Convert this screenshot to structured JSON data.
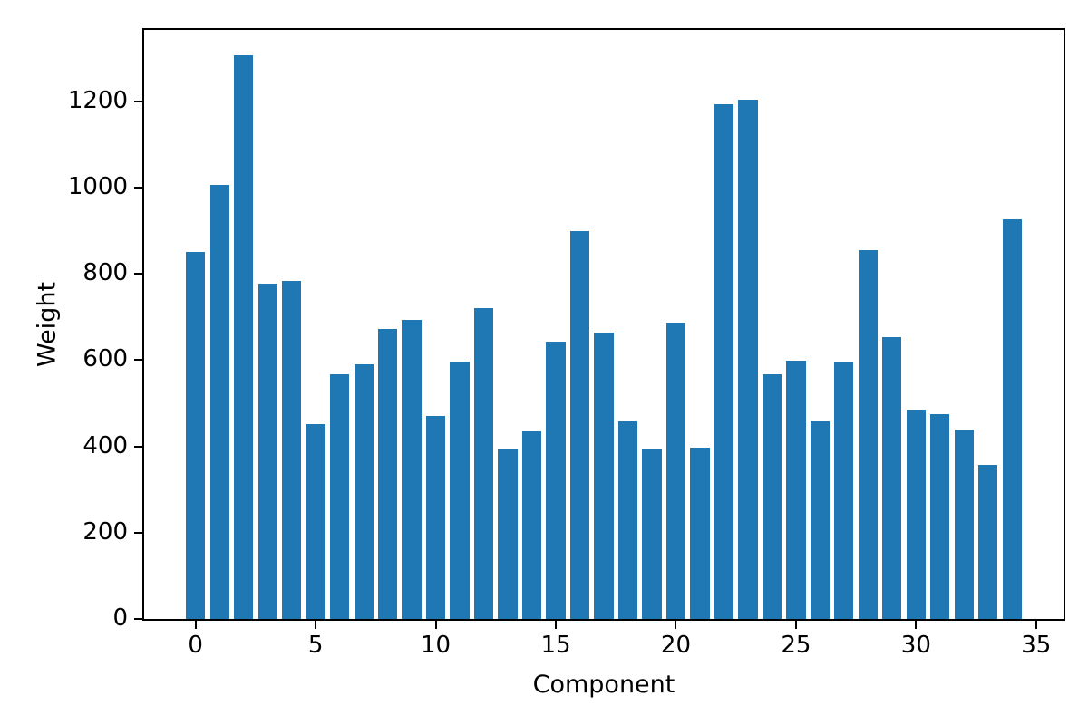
{
  "figure": {
    "background": "#ffffff",
    "bar_color": "#1f77b4",
    "axis_color": "#000000",
    "text_color": "#000000"
  },
  "chart_data": {
    "type": "bar",
    "title": "",
    "xlabel": "Component",
    "ylabel": "Weight",
    "categories": [
      0,
      1,
      2,
      3,
      4,
      5,
      6,
      7,
      8,
      9,
      10,
      11,
      12,
      13,
      14,
      15,
      16,
      17,
      18,
      19,
      20,
      21,
      22,
      23,
      24,
      25,
      26,
      27,
      28,
      29,
      30,
      31,
      32,
      33,
      34
    ],
    "values": [
      852,
      1007,
      1308,
      778,
      784,
      452,
      568,
      591,
      672,
      694,
      470,
      597,
      720,
      394,
      435,
      643,
      900,
      665,
      458,
      394,
      687,
      397,
      1194,
      1205,
      568,
      599,
      458,
      595,
      856,
      653,
      486,
      475,
      440,
      358,
      927
    ],
    "bar_width": 0.8,
    "bar_color": "#1f77b4",
    "xticks": [
      0,
      5,
      10,
      15,
      20,
      25,
      30,
      35
    ],
    "yticks": [
      0,
      200,
      400,
      600,
      800,
      1000,
      1200
    ],
    "xlim": [
      -2.14,
      36.14
    ],
    "ylim": [
      0,
      1366
    ],
    "grid": false,
    "legend": null
  }
}
